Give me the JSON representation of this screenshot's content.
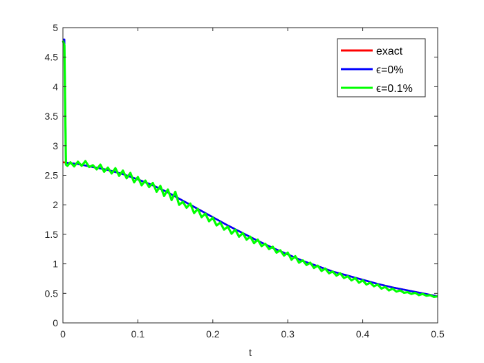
{
  "chart_data": {
    "type": "line",
    "title": "",
    "xlabel": "t",
    "ylabel": "",
    "xlim": [
      0,
      0.5
    ],
    "ylim": [
      0,
      5
    ],
    "xticks": [
      "0",
      "0.1",
      "0.2",
      "0.3",
      "0.4",
      "0.5"
    ],
    "yticks": [
      "0",
      "0.5",
      "1",
      "1.5",
      "2",
      "2.5",
      "3",
      "3.5",
      "4",
      "4.5",
      "5"
    ],
    "grid": false,
    "legend_position": "top-right",
    "series": [
      {
        "name": "exact",
        "color": "#ff0000",
        "x": [
          0,
          0.02,
          0.04,
          0.06,
          0.08,
          0.1,
          0.12,
          0.14,
          0.16,
          0.18,
          0.2,
          0.22,
          0.24,
          0.26,
          0.28,
          0.3,
          0.32,
          0.34,
          0.36,
          0.38,
          0.4,
          0.42,
          0.44,
          0.46,
          0.48,
          0.5
        ],
        "y": [
          2.72,
          2.69,
          2.64,
          2.59,
          2.52,
          2.43,
          2.33,
          2.21,
          2.07,
          1.93,
          1.79,
          1.65,
          1.52,
          1.39,
          1.27,
          1.16,
          1.05,
          0.96,
          0.87,
          0.8,
          0.73,
          0.66,
          0.6,
          0.55,
          0.5,
          0.45
        ]
      },
      {
        "name": "ϵ=0%",
        "color": "#0000ff",
        "x": [
          0,
          0.002,
          0.004,
          0.006,
          0.02,
          0.04,
          0.06,
          0.08,
          0.1,
          0.12,
          0.14,
          0.16,
          0.18,
          0.2,
          0.22,
          0.24,
          0.26,
          0.28,
          0.3,
          0.32,
          0.34,
          0.36,
          0.38,
          0.4,
          0.42,
          0.44,
          0.46,
          0.48,
          0.5
        ],
        "y": [
          4.8,
          4.8,
          2.72,
          2.71,
          2.69,
          2.64,
          2.59,
          2.52,
          2.43,
          2.33,
          2.21,
          2.07,
          1.93,
          1.79,
          1.65,
          1.52,
          1.39,
          1.27,
          1.16,
          1.05,
          0.96,
          0.87,
          0.8,
          0.73,
          0.66,
          0.6,
          0.55,
          0.5,
          0.45
        ]
      },
      {
        "name": "ϵ=0.1%",
        "color": "#00ff00",
        "x": [
          0,
          0.002,
          0.004,
          0.006,
          0.01,
          0.015,
          0.02,
          0.025,
          0.03,
          0.035,
          0.04,
          0.045,
          0.05,
          0.055,
          0.06,
          0.065,
          0.07,
          0.075,
          0.08,
          0.085,
          0.09,
          0.095,
          0.1,
          0.105,
          0.11,
          0.115,
          0.12,
          0.125,
          0.13,
          0.135,
          0.14,
          0.145,
          0.15,
          0.155,
          0.16,
          0.165,
          0.17,
          0.175,
          0.18,
          0.185,
          0.19,
          0.195,
          0.2,
          0.205,
          0.21,
          0.215,
          0.22,
          0.225,
          0.23,
          0.235,
          0.24,
          0.245,
          0.25,
          0.255,
          0.26,
          0.265,
          0.27,
          0.275,
          0.28,
          0.285,
          0.29,
          0.295,
          0.3,
          0.305,
          0.31,
          0.315,
          0.32,
          0.325,
          0.33,
          0.335,
          0.34,
          0.345,
          0.35,
          0.355,
          0.36,
          0.365,
          0.37,
          0.375,
          0.38,
          0.385,
          0.39,
          0.395,
          0.4,
          0.405,
          0.41,
          0.415,
          0.42,
          0.425,
          0.43,
          0.435,
          0.44,
          0.445,
          0.45,
          0.455,
          0.46,
          0.465,
          0.47,
          0.475,
          0.48,
          0.485,
          0.49,
          0.495,
          0.5
        ],
        "y": [
          4.78,
          4.7,
          2.68,
          2.66,
          2.72,
          2.65,
          2.73,
          2.66,
          2.74,
          2.64,
          2.67,
          2.6,
          2.68,
          2.56,
          2.63,
          2.53,
          2.62,
          2.49,
          2.58,
          2.45,
          2.54,
          2.38,
          2.47,
          2.33,
          2.41,
          2.3,
          2.37,
          2.22,
          2.32,
          2.15,
          2.26,
          2.08,
          2.22,
          2.0,
          2.05,
          1.95,
          2.02,
          1.86,
          1.93,
          1.79,
          1.85,
          1.72,
          1.78,
          1.65,
          1.7,
          1.58,
          1.63,
          1.51,
          1.58,
          1.46,
          1.52,
          1.41,
          1.46,
          1.35,
          1.41,
          1.3,
          1.34,
          1.25,
          1.29,
          1.19,
          1.23,
          1.14,
          1.19,
          1.07,
          1.13,
          1.02,
          1.06,
          0.98,
          1.02,
          0.93,
          0.97,
          0.88,
          0.92,
          0.84,
          0.87,
          0.8,
          0.84,
          0.76,
          0.79,
          0.72,
          0.76,
          0.68,
          0.72,
          0.65,
          0.68,
          0.62,
          0.65,
          0.58,
          0.61,
          0.55,
          0.58,
          0.53,
          0.55,
          0.51,
          0.52,
          0.49,
          0.51,
          0.47,
          0.49,
          0.46,
          0.47,
          0.44,
          0.45
        ]
      }
    ]
  }
}
